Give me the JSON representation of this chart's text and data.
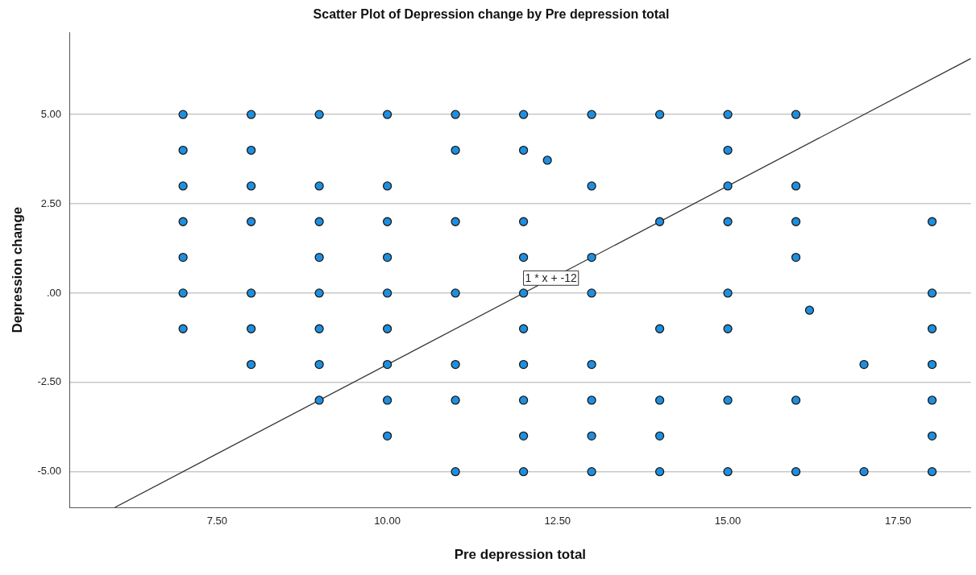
{
  "chart_data": {
    "type": "scatter",
    "title": "Scatter Plot of Depression change by Pre depression total",
    "xlabel": "Pre depression total",
    "ylabel": "Depression change",
    "xlim": [
      5.33,
      18.57
    ],
    "ylim": [
      -6,
      7.3
    ],
    "xticks": [
      {
        "value": 7.5,
        "label": "7.50"
      },
      {
        "value": 10,
        "label": "10.00"
      },
      {
        "value": 12.5,
        "label": "12.50"
      },
      {
        "value": 15,
        "label": "15.00"
      },
      {
        "value": 17.5,
        "label": "17.50"
      }
    ],
    "yticks": [
      {
        "value": -5,
        "label": "-5.00"
      },
      {
        "value": -2.5,
        "label": "-2.50"
      },
      {
        "value": 0,
        "label": ".00"
      },
      {
        "value": 2.5,
        "label": "2.50"
      },
      {
        "value": 5,
        "label": "5.00"
      }
    ],
    "grid": "y",
    "legend": false,
    "marker": "circle",
    "series": [
      {
        "color": "#1e8fe0",
        "x": [
          7,
          7,
          7,
          7,
          7,
          7,
          7,
          8,
          8,
          8,
          8,
          8,
          8,
          8,
          9,
          9,
          9,
          9,
          9,
          9,
          9,
          9,
          10,
          10,
          10,
          10,
          10,
          10,
          10,
          10,
          10,
          11,
          11,
          11,
          11,
          11,
          11,
          11,
          12,
          12,
          12,
          12,
          12,
          12,
          12,
          12,
          12,
          12,
          12.35,
          13,
          13,
          13,
          13,
          13,
          13,
          13,
          13,
          14,
          14,
          14,
          14,
          14,
          14,
          15,
          15,
          15,
          15,
          15,
          15,
          15,
          15,
          16,
          16,
          16,
          16,
          16,
          16,
          16.2,
          17,
          17,
          18,
          18,
          18,
          18,
          18,
          18,
          18
        ],
        "values": [
          5,
          4,
          3,
          2,
          1,
          0,
          -1,
          5,
          4,
          3,
          2,
          0,
          -1,
          -2,
          5,
          3,
          2,
          1,
          0,
          -1,
          -2,
          -3,
          5,
          3,
          2,
          1,
          0,
          -1,
          -2,
          -3,
          -4,
          5,
          4,
          2,
          0,
          -2,
          -3,
          -5,
          5,
          4,
          2,
          1,
          0,
          -1,
          -2,
          -3,
          -4,
          -5,
          3.72,
          5,
          3,
          1,
          0,
          -2,
          -3,
          -4,
          -5,
          5,
          2,
          -1,
          -3,
          -4,
          -5,
          5,
          4,
          3,
          2,
          0,
          -1,
          -3,
          -5,
          5,
          3,
          2,
          1,
          -3,
          -5,
          -0.48,
          -2,
          -5,
          2,
          0,
          -1,
          -2,
          -3,
          -4,
          -5
        ]
      },
      {
        "type": "line",
        "color": "#333333",
        "marker": "none",
        "line_style": "solid",
        "x": [
          6,
          18.57
        ],
        "values": [
          -6,
          6.57
        ]
      }
    ],
    "annotations": [
      "1 * x + -12"
    ]
  }
}
